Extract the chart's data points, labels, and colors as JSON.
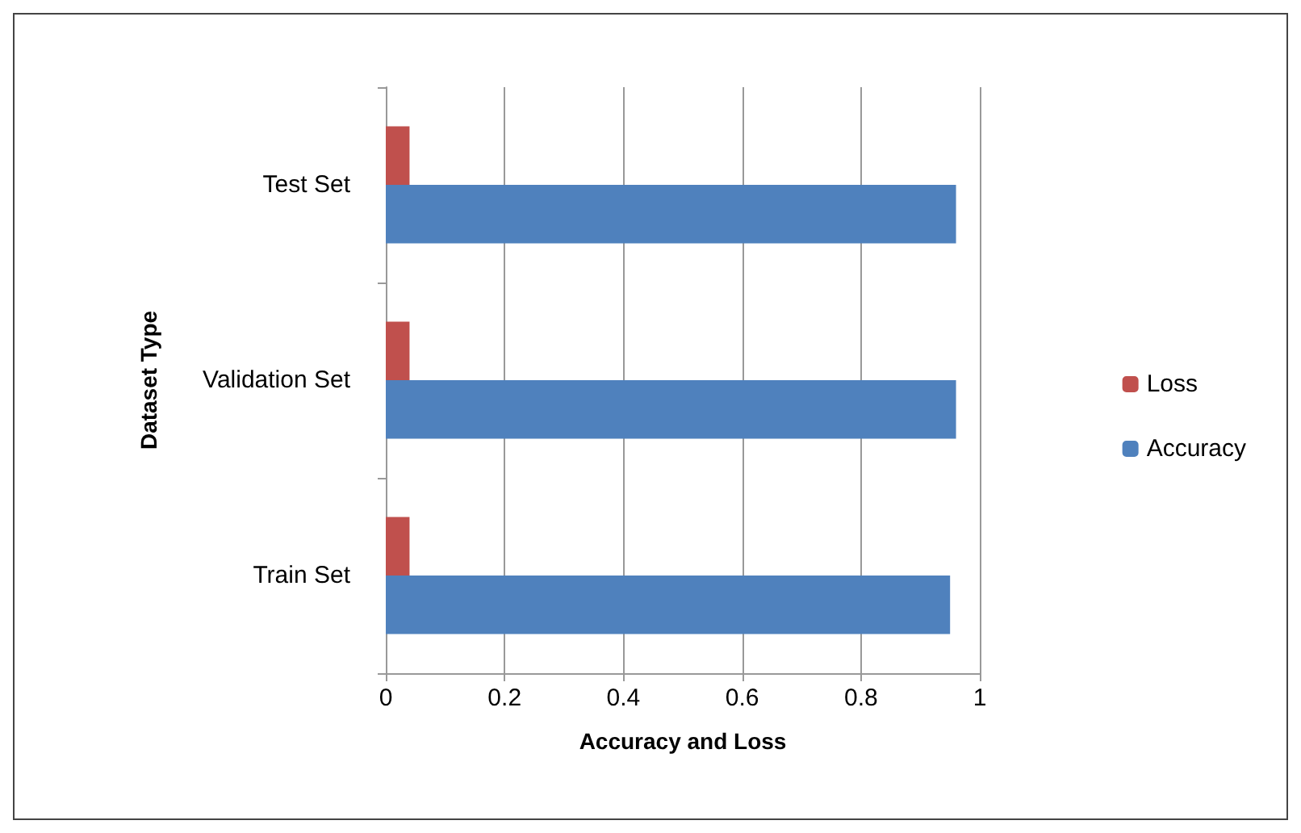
{
  "chart_data": {
    "type": "bar",
    "orientation": "horizontal",
    "xlabel": "Accuracy and Loss",
    "ylabel": "Dataset Type",
    "categories": [
      "Test Set",
      "Validation Set",
      "Train Set"
    ],
    "series": [
      {
        "name": "Loss",
        "color": "#c0504d",
        "values": [
          0.04,
          0.04,
          0.04
        ]
      },
      {
        "name": "Accuracy",
        "color": "#4f81bd",
        "values": [
          0.96,
          0.96,
          0.95
        ]
      }
    ],
    "xlim": [
      0,
      1
    ],
    "xticks": [
      0,
      0.2,
      0.4,
      0.6,
      0.8,
      1
    ],
    "grid": "x",
    "legend": "right"
  }
}
